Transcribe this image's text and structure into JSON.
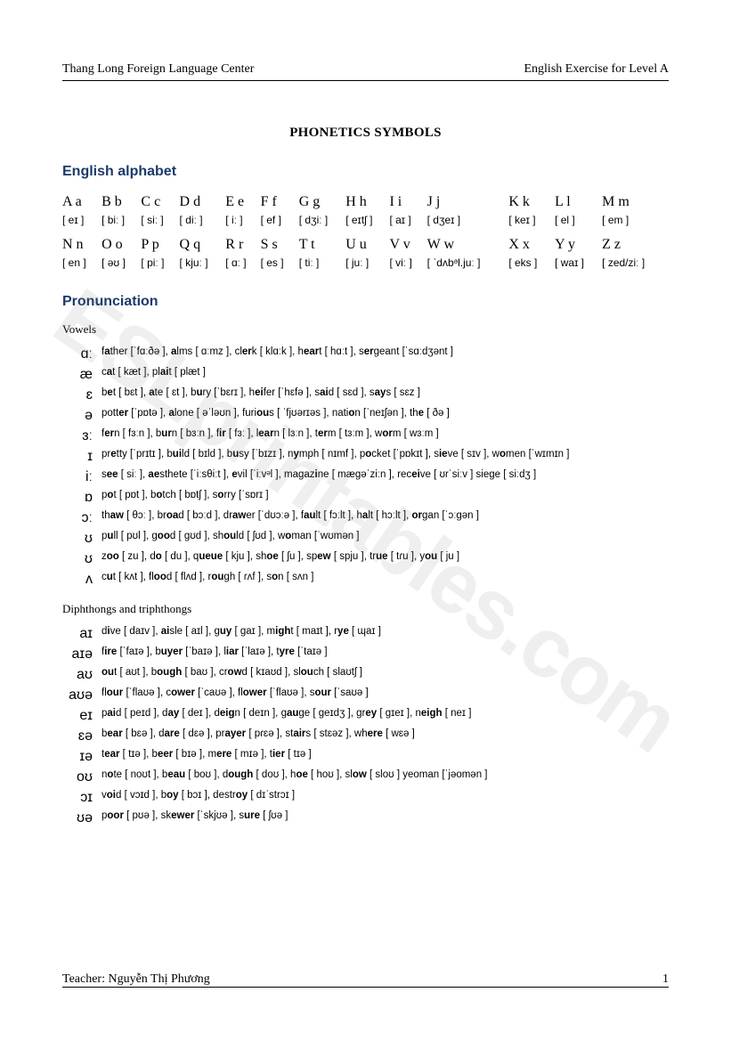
{
  "header": {
    "left": "Thang Long Foreign Language Center",
    "right": "English Exercise for Level A"
  },
  "title": "PHONETICS SYMBOLS",
  "section_alphabet": "English alphabet",
  "alphabet": {
    "row1_letters": [
      "A a",
      "B b",
      "C c",
      "D d",
      "E e",
      "F f",
      "G g",
      "H h",
      "I i",
      "J j",
      "K k",
      "L l",
      "M m"
    ],
    "row1_ipa": [
      "[ eɪ ]",
      "[ biː ]",
      "[ siː ]",
      "[ diː ]",
      "[ iː ]",
      "[ ef ]",
      "[ dʒiː ]",
      "[ eɪtʃ ]",
      "[ aɪ ]",
      "[ dʒeɪ ]",
      "[ keɪ ]",
      "[ el ]",
      "[ em ]"
    ],
    "row2_letters": [
      "N n",
      "O o",
      "P p",
      "Q q",
      "R r",
      "S s",
      "T t",
      "U u",
      "V v",
      "W w",
      "X x",
      "Y y",
      "Z z"
    ],
    "row2_ipa": [
      "[ en ]",
      "[ əʊ ]",
      "[ piː ]",
      "[ kjuː ]",
      "[ ɑː ]",
      "[ es ]",
      "[ tiː ]",
      "[ juː ]",
      "[ viː ]",
      "[ ˈdʌbᵊl.juː ]",
      "[ eks ]",
      "[ waɪ ]",
      "[ zed/ziː ]"
    ]
  },
  "section_pron": "Pronunciation",
  "vowels_heading": "Vowels",
  "vowels": [
    {
      "sym": "ɑː",
      "ex": "f<b>a</b>ther [ˈfɑːðə ], <b>a</b>lms [ ɑːmz ], cl<b>er</b>k [ klɑːk ], h<b>ear</b>t [ hɑːt ], s<b>er</b>geant [ˈsɑːdʒənt ]"
    },
    {
      "sym": "æ",
      "ex": "c<b>a</b>t [ kæt ], pl<b>ai</b>t [ plæt ]"
    },
    {
      "sym": "ɛ",
      "ex": "b<b>e</b>t [ bɛt ], <b>a</b>te [ ɛt ], b<b>u</b>ry [ˈbɛrɪ ], h<b>ei</b>fer [ˈhɛfə ], s<b>ai</b>d [ sɛd ], s<b>ay</b>s [ sɛz ]"
    },
    {
      "sym": "ə",
      "ex": "pott<b>er</b> [ˈpɒtə ], <b>a</b>lone [ əˈləʊn ], furi<b>ou</b>s [ ˈfjʊərɪəs ], nati<b>o</b>n [ˈneɪʃən ], th<b>e</b> [ ðə ]"
    },
    {
      "sym": "ɜː",
      "ex": "f<b>er</b>n [ fɜːn ], b<b>ur</b>n [ bɜːn ], f<b>ir</b> [ fɜː ], l<b>ear</b>n [ lɜːn ], t<b>er</b>m [ tɜːm ], w<b>or</b>m [ wɜːm ]"
    },
    {
      "sym": "ɪ",
      "ex": "pr<b>e</b>tty [ˈprɪtɪ ], b<b>ui</b>ld [ bɪld ], b<b>u</b>sy [ˈbɪzɪ ], n<b>y</b>mph [ nɪmf ], p<b>o</b>cket [ˈpɒkɪt ], s<b>ie</b>ve [ sɪv ], w<b>o</b>men [ˈwɪmɪn ]"
    },
    {
      "sym": "iː",
      "ex": "s<b>ee</b> [ siː ], <b>ae</b>sthete [ˈiːsθiːt ], <b>e</b>vil [ˈiːvᵊl ], magaz<b>i</b>ne [ mægəˈziːn ], rec<b>ei</b>ve [ ʊrˈsiːv ] siege [ siːdʒ ]"
    },
    {
      "sym": "ɒ",
      "ex": "p<b>o</b>t [ pɒt ], b<b>o</b>tch [ bɒtʃ ], s<b>o</b>rry [ˈsɒrɪ ]"
    },
    {
      "sym": "ɔː",
      "ex": "th<b>aw</b> [ θɔː ], br<b>oa</b>d [ bɔːd ], dr<b>aw</b>er [ˈdʊɔːə ], f<b>au</b>lt [ fɔːlt ], h<b>a</b>lt [ hɔːlt ], <b>or</b>gan [ˈɔːgən ]"
    },
    {
      "sym": "ʊ",
      "ex": "p<b>u</b>ll [ pʊl ], g<b>oo</b>d [ gʊd ], sh<b>ou</b>ld [ ʃʊd ], w<b>o</b>man [ˈwʊmən ]"
    },
    {
      "sym": "ʊ",
      "ex": "z<b>oo</b> [ zu ], d<b>o</b> [ du ], q<b>ueue</b> [ kju ], sh<b>oe</b> [ ʃu ], sp<b>ew</b> [ spju ], tr<b>ue</b> [ tɾu ], y<b>ou</b> [ ju ]"
    },
    {
      "sym": "ʌ",
      "ex": "c<b>u</b>t [ kʌt ], fl<b>oo</b>d [ flʌd ], r<b>ou</b>gh [ ɾʌf ], s<b>o</b>n [ sʌn ]"
    }
  ],
  "diph_heading": "Diphthongs and triphthongs",
  "diphthongs": [
    {
      "sym": "aɪ",
      "ex": "d<b>i</b>ve [ daɪv ], <b>ai</b>sle [ aɪl ], g<b>uy</b> [ gaɪ ], m<b>igh</b>t [ maɪt ], r<b>ye</b> [ ɰaɪ ]"
    },
    {
      "sym": "aɪə",
      "ex": "f<b>ire</b> [ˈfaɪə ], b<b>uyer</b> [ˈbaɪə ], l<b>iar</b> [ˈlaɪə ], t<b>yre</b> [ˈtaɪə ]"
    },
    {
      "sym": "aʊ",
      "ex": "<b>ou</b>t [ aʊt ], b<b>ough</b> [ baʊ ], cr<b>ow</b>d [ kɪaʊd ], sl<b>ou</b>ch [ slaʊtʃ ]"
    },
    {
      "sym": "aʊə",
      "ex": "fl<b>our</b> [ˈflaʊə ], c<b>ower</b> [ˈcaʊə ], fl<b>ower</b> [ˈflaʊə ], s<b>our</b> [ˈsaʊə ]"
    },
    {
      "sym": "eɪ",
      "ex": "p<b>ai</b>d [ peɪd ], d<b>ay</b> [ deɪ ], d<b>eig</b>n [ deɪn ], g<b>au</b>ge [ geɪdʒ ], gr<b>ey</b> [ gɪeɪ ], n<b>eigh</b> [ neɪ ]"
    },
    {
      "sym": "ɛə",
      "ex": "b<b>ear</b> [ bɛə ], d<b>are</b> [ dɛə ], pr<b>ayer</b> [ pɾɛə ], st<b>air</b>s [ stɛəz ], wh<b>ere</b> [ wɛə ]"
    },
    {
      "sym": "ɪə",
      "ex": "t<b>ear</b> [ tɪə ], b<b>eer</b> [ bɪə ], m<b>ere</b> [ mɪə ], t<b>ier</b> [ tɪə ]"
    },
    {
      "sym": "oʊ",
      "ex": "n<b>o</b>te [ noʊt ], b<b>eau</b> [ boʊ ], d<b>ough</b> [ doʊ ], h<b>oe</b> [ hoʊ ], sl<b>ow</b> [ sloʊ ] yeoman [ˈjəomən ]"
    },
    {
      "sym": "ɔɪ",
      "ex": "v<b>oi</b>d [ vɔɪd ], b<b>oy</b> [ bɔɪ ], destr<b>oy</b> [ dɪˈstrɔɪ ]"
    },
    {
      "sym": "ʊə",
      "ex": "p<b>oor</b> [ pʊə ], sk<b>ewer</b> [ˈskjʊə ], s<b>ure</b> [ ʃʊə ]"
    }
  ],
  "footer": {
    "teacher": "Teacher: Nguyễn Thị Phương",
    "page": "1"
  },
  "watermark": "ESLprintables.com"
}
